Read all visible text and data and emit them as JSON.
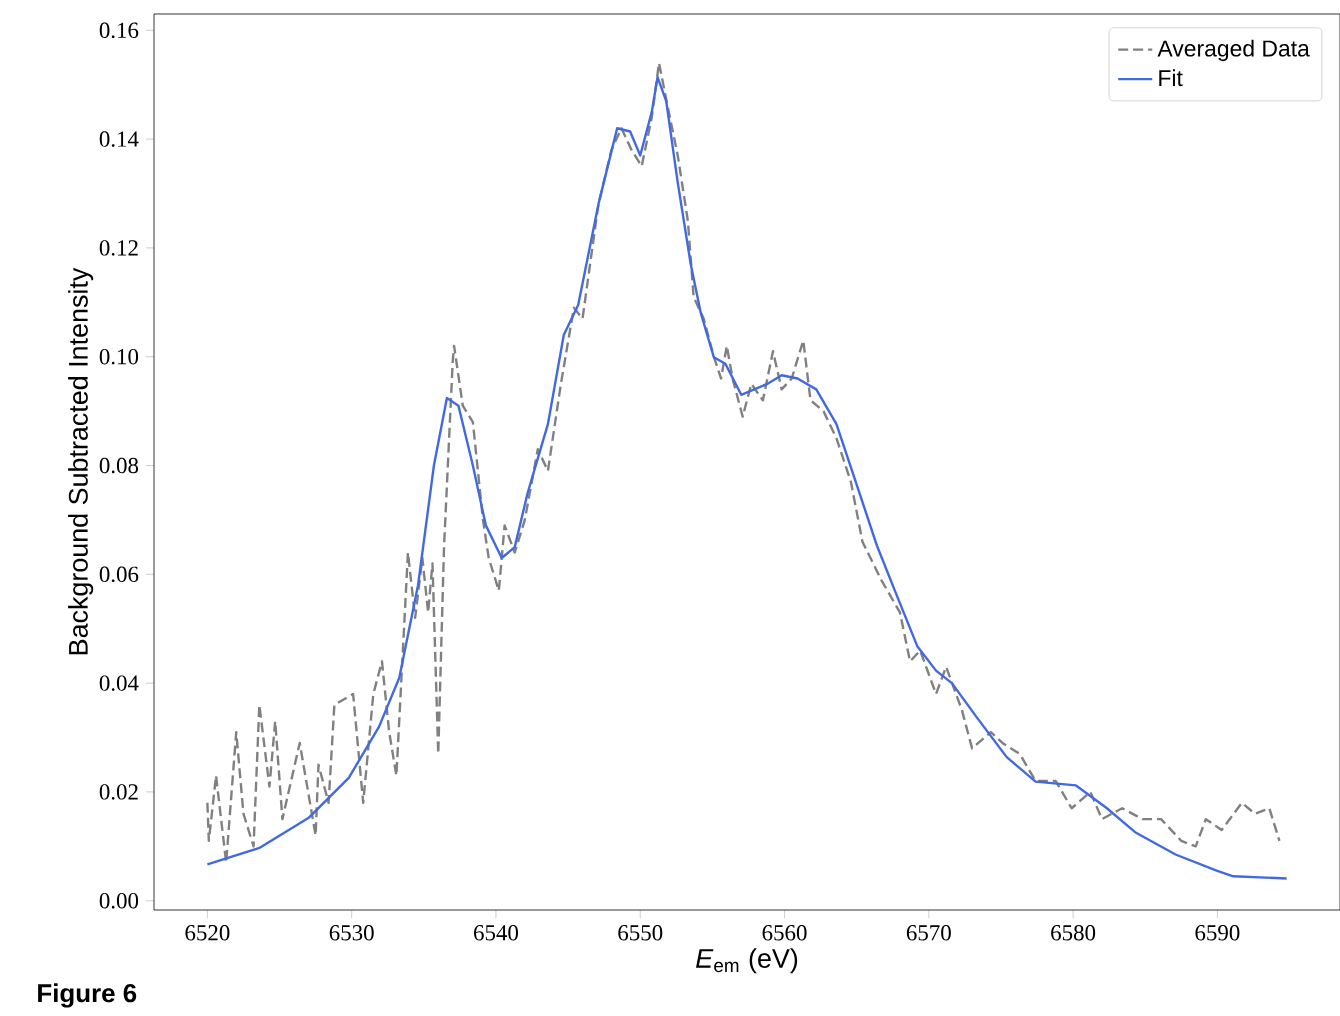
{
  "chart_data": {
    "type": "line",
    "xlabel": "*E*$_{em}$ (eV)",
    "ylabel": "Background Subtracted Intensity",
    "annotations": [
      "**Figure 6**"
    ],
    "xlim": [
      6516.3,
      6598.5
    ],
    "ylim": [
      -0.0017,
      0.163
    ],
    "xticks": [
      6520,
      6530,
      6540,
      6550,
      6560,
      6570,
      6580,
      6590
    ],
    "yticks": [
      {
        "value": 0,
        "label": "0.00"
      },
      {
        "value": 0.02,
        "label": "0.02"
      },
      {
        "value": 0.04,
        "label": "0.04"
      },
      {
        "value": 0.06,
        "label": "0.06"
      },
      {
        "value": 0.08,
        "label": "0.08"
      },
      {
        "value": 0.1,
        "label": "0.10"
      },
      {
        "value": 0.12,
        "label": "0.12"
      },
      {
        "value": 0.14,
        "label": "0.14"
      },
      {
        "value": 0.16,
        "label": "0.16"
      }
    ],
    "legend": "top right",
    "grid": false,
    "series": [
      {
        "name": "Averaged Data",
        "color": "#808080",
        "line_style": "dashed",
        "x": [
          6520,
          6520.1,
          6520.6,
          6521.3,
          6522.0,
          6522.5,
          6523.2,
          6523.6,
          6524.3,
          6524.7,
          6525.2,
          6526.4,
          6527.5,
          6527.7,
          6528.4,
          6528.8,
          6530.1,
          6530.8,
          6531.5,
          6532.1,
          6532.6,
          6533.1,
          6533.9,
          6534.4,
          6534.9,
          6535.3,
          6535.6,
          6536.0,
          6536.4,
          6537.0,
          6537.1,
          6537.7,
          6538.4,
          6539.1,
          6539.5,
          6540.2,
          6540.6,
          6541.3,
          6542.0,
          6542.9,
          6543.6,
          6544.5,
          6545.4,
          6546.0,
          6547.1,
          6548.0,
          6548.7,
          6549.4,
          6550.1,
          6550.8,
          6551.3,
          6551.9,
          6552.6,
          6553.3,
          6553.7,
          6554.4,
          6555.1,
          6555.6,
          6556.0,
          6556.4,
          6557.1,
          6557.7,
          6558.5,
          6559.2,
          6559.8,
          6560.5,
          6561.3,
          6561.8,
          6562.7,
          6563.6,
          6564.6,
          6565.4,
          6566.7,
          6568.0,
          6568.7,
          6569.4,
          6570.5,
          6571.2,
          6572.3,
          6573.0,
          6574.3,
          6575.1,
          6576.3,
          6577.4,
          6578.8,
          6579.9,
          6581.2,
          6582.0,
          6583.4,
          6584.8,
          6586.1,
          6587.5,
          6588.5,
          6589.2,
          6590.3,
          6591.7,
          6592.6,
          6593.6,
          6594.3
        ],
        "values": [
          0.018,
          0.011,
          0.023,
          0.007,
          0.031,
          0.016,
          0.01,
          0.036,
          0.021,
          0.033,
          0.015,
          0.029,
          0.012,
          0.025,
          0.018,
          0.036,
          0.038,
          0.018,
          0.038,
          0.044,
          0.031,
          0.023,
          0.064,
          0.052,
          0.063,
          0.053,
          0.062,
          0.027,
          0.065,
          0.099,
          0.102,
          0.091,
          0.088,
          0.07,
          0.063,
          0.057,
          0.069,
          0.064,
          0.07,
          0.083,
          0.079,
          0.095,
          0.109,
          0.107,
          0.128,
          0.138,
          0.142,
          0.138,
          0.135,
          0.144,
          0.154,
          0.146,
          0.137,
          0.125,
          0.111,
          0.107,
          0.1,
          0.096,
          0.102,
          0.096,
          0.089,
          0.095,
          0.092,
          0.101,
          0.094,
          0.096,
          0.103,
          0.092,
          0.09,
          0.085,
          0.077,
          0.066,
          0.059,
          0.053,
          0.044,
          0.046,
          0.038,
          0.043,
          0.035,
          0.028,
          0.031,
          0.029,
          0.027,
          0.022,
          0.022,
          0.017,
          0.02,
          0.015,
          0.017,
          0.015,
          0.015,
          0.011,
          0.01,
          0.015,
          0.013,
          0.018,
          0.016,
          0.017,
          0.011
        ]
      },
      {
        "name": "Fit",
        "color": "#4169e1",
        "line_style": "solid",
        "x": [
          6520,
          6523.6,
          6527.0,
          6529.8,
          6531.9,
          6533.3,
          6534.6,
          6535.7,
          6536.6,
          6537.4,
          6538.4,
          6539.3,
          6540.4,
          6541.3,
          6542.2,
          6543.6,
          6544.7,
          6545.7,
          6547.1,
          6548.4,
          6549.3,
          6550.0,
          6550.8,
          6551.2,
          6551.8,
          6552.6,
          6553.5,
          6554.2,
          6555.1,
          6555.9,
          6557.0,
          6558.8,
          6559.8,
          6560.9,
          6562.2,
          6563.6,
          6565.0,
          6566.4,
          6567.8,
          6569.2,
          6570.5,
          6571.6,
          6573.3,
          6575.4,
          6577.4,
          6580.2,
          6582.3,
          6584.3,
          6587.1,
          6589.9,
          6591.1,
          6594.8
        ],
        "values": [
          0.0067,
          0.0097,
          0.0152,
          0.0226,
          0.032,
          0.041,
          0.058,
          0.08,
          0.0924,
          0.091,
          0.08,
          0.069,
          0.063,
          0.065,
          0.075,
          0.0876,
          0.104,
          0.1095,
          0.128,
          0.142,
          0.1414,
          0.137,
          0.145,
          0.1514,
          0.147,
          0.132,
          0.117,
          0.108,
          0.0999,
          0.0987,
          0.093,
          0.095,
          0.0966,
          0.096,
          0.094,
          0.0876,
          0.0765,
          0.0653,
          0.056,
          0.0468,
          0.0423,
          0.04,
          0.0338,
          0.0264,
          0.0219,
          0.0212,
          0.0171,
          0.0126,
          0.0085,
          0.0056,
          0.0045,
          0.0041
        ]
      }
    ]
  }
}
